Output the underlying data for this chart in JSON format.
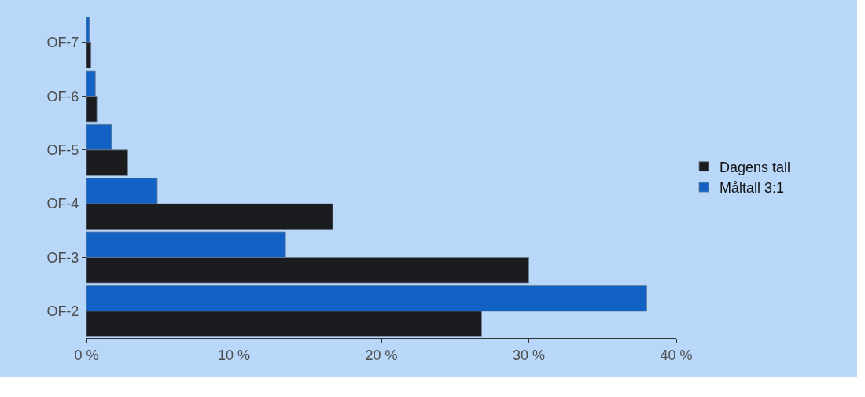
{
  "chart_data": {
    "type": "bar",
    "orientation": "horizontal",
    "categories": [
      "OF-7",
      "OF-6",
      "OF-5",
      "OF-4",
      "OF-3",
      "OF-2"
    ],
    "series": [
      {
        "name": "Dagens tall",
        "color": "#1a1c20",
        "values": [
          0.3,
          0.7,
          2.8,
          16.7,
          30.0,
          26.8
        ]
      },
      {
        "name": "Måltall 3:1",
        "color": "#1261c4",
        "values": [
          0.2,
          0.6,
          1.7,
          4.8,
          13.5,
          38.0
        ]
      }
    ],
    "xlim": [
      0,
      40
    ],
    "xticks": [
      {
        "value": 0,
        "label": "0 %"
      },
      {
        "value": 10,
        "label": "10 %"
      },
      {
        "value": 20,
        "label": "20 %"
      },
      {
        "value": 30,
        "label": "30 %"
      },
      {
        "value": 40,
        "label": "40 %"
      }
    ],
    "grid": false,
    "legend": "right"
  }
}
